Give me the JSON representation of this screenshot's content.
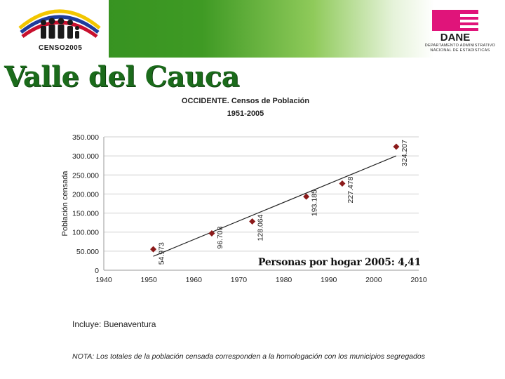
{
  "header": {
    "censo_logo_text": "CENSO2005",
    "dane_logo_text": "DANE",
    "dane_caption_line1": "DEPARTAMENTO ADMINISTRATIVO",
    "dane_caption_line2": "NACIONAL DE ESTADISTICAS",
    "region_title": "Valle del Cauca"
  },
  "annotation": "Personas por hogar 2005: 4,41",
  "notes": {
    "includes": "Incluye: Buenaventura",
    "nota": "NOTA: Los totales de la población censada corresponden a la homologación con los municipios segregados"
  },
  "colors": {
    "marker": "#8b1a1a",
    "trendline": "#222222",
    "grid": "#d0d0d0",
    "title_green": "#1b6b1b",
    "dane_magenta": "#e0147a"
  },
  "chart_data": {
    "type": "scatter",
    "title_line1": "OCCIDENTE. Censos de Población",
    "title_line2": "1951-2005",
    "xlabel": "",
    "ylabel": "Población censada",
    "xlim": [
      1940,
      2010
    ],
    "ylim": [
      0,
      350000
    ],
    "x_ticks": [
      "1940",
      "1950",
      "1960",
      "1970",
      "1980",
      "1990",
      "2000",
      "2010"
    ],
    "y_ticks": [
      "0",
      "50.000",
      "100.000",
      "150.000",
      "200.000",
      "250.000",
      "300.000",
      "350.000"
    ],
    "grid": true,
    "trendline": true,
    "points": [
      {
        "x": 1951,
        "y": 54973,
        "label": "54.973"
      },
      {
        "x": 1964,
        "y": 96708,
        "label": "96.708"
      },
      {
        "x": 1973,
        "y": 128064,
        "label": "128.064"
      },
      {
        "x": 1985,
        "y": 193185,
        "label": "193.185"
      },
      {
        "x": 1993,
        "y": 227478,
        "label": "227.478"
      },
      {
        "x": 2005,
        "y": 324207,
        "label": "324.207"
      }
    ]
  }
}
